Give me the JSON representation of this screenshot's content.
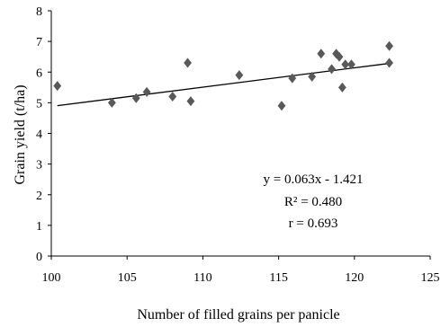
{
  "chart_data": {
    "type": "scatter",
    "xlabel": "Number of filled grains per panicle",
    "ylabel": "Grain yield  (t/ha)",
    "xlim": [
      100,
      125
    ],
    "ylim": [
      0,
      8
    ],
    "xticks": [
      100,
      105,
      110,
      115,
      120,
      125
    ],
    "yticks": [
      0,
      1,
      2,
      3,
      4,
      5,
      6,
      7,
      8
    ],
    "grid": false,
    "legend": "none",
    "marker": "diamond",
    "marker_color": "#595959",
    "points": [
      {
        "x": 100.4,
        "y": 5.55
      },
      {
        "x": 104.0,
        "y": 5.0
      },
      {
        "x": 105.6,
        "y": 5.15
      },
      {
        "x": 106.3,
        "y": 5.35
      },
      {
        "x": 108.0,
        "y": 5.2
      },
      {
        "x": 109.0,
        "y": 6.3
      },
      {
        "x": 109.2,
        "y": 5.05
      },
      {
        "x": 112.4,
        "y": 5.9
      },
      {
        "x": 115.2,
        "y": 4.9
      },
      {
        "x": 115.9,
        "y": 5.8
      },
      {
        "x": 117.2,
        "y": 5.85
      },
      {
        "x": 117.8,
        "y": 6.6
      },
      {
        "x": 118.5,
        "y": 6.1
      },
      {
        "x": 118.8,
        "y": 6.6
      },
      {
        "x": 119.0,
        "y": 6.5
      },
      {
        "x": 119.2,
        "y": 5.5
      },
      {
        "x": 119.4,
        "y": 6.25
      },
      {
        "x": 119.8,
        "y": 6.25
      },
      {
        "x": 122.3,
        "y": 6.85
      },
      {
        "x": 122.3,
        "y": 6.3
      }
    ],
    "trendline": {
      "slope": 0.063,
      "intercept": -1.421,
      "x_from": 100.4,
      "x_to": 122.3
    },
    "annotations": [
      "y = 0.063x - 1.421",
      "R² = 0.480",
      "r = 0.693"
    ]
  }
}
